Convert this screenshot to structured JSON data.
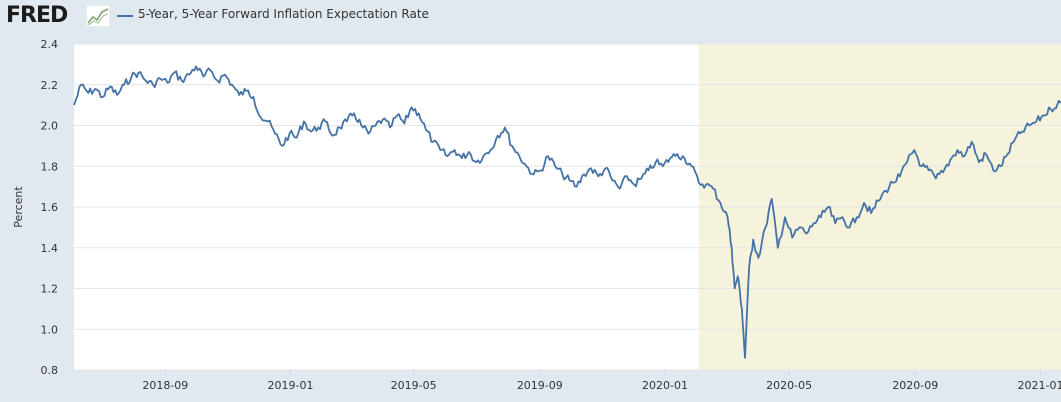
{
  "header": {
    "logo_text": "FRED",
    "logo_graph_icon": "trend-chart-icon"
  },
  "colors": {
    "series": "#4572a7",
    "recession": "#f5f3dc",
    "plot_bg": "#ffffff",
    "page_bg": "#e1e9f0",
    "grid": "#e6e6e6"
  },
  "chart_data": {
    "type": "line",
    "title": "",
    "xlabel": "",
    "ylabel": "Percent",
    "ylim": [
      0.8,
      2.4
    ],
    "xlim": [
      "2018-06-04",
      "2021-01-21"
    ],
    "yticks": [
      "0.8",
      "1.0",
      "1.2",
      "1.4",
      "1.6",
      "1.8",
      "2.0",
      "2.2",
      "2.4"
    ],
    "xticks": [
      "2018-09",
      "2019-01",
      "2019-05",
      "2019-09",
      "2020-01",
      "2020-05",
      "2020-09",
      "2021-01"
    ],
    "grid": true,
    "legend": "top-left",
    "series": [
      {
        "name": "5-Year, 5-Year Forward Inflation Expectation Rate",
        "points": [
          [
            "2018-06-04",
            2.1
          ],
          [
            "2018-06-11",
            2.2
          ],
          [
            "2018-06-18",
            2.16
          ],
          [
            "2018-06-25",
            2.18
          ],
          [
            "2018-07-02",
            2.14
          ],
          [
            "2018-07-09",
            2.19
          ],
          [
            "2018-07-16",
            2.15
          ],
          [
            "2018-07-23",
            2.2
          ],
          [
            "2018-07-30",
            2.24
          ],
          [
            "2018-08-06",
            2.26
          ],
          [
            "2018-08-13",
            2.22
          ],
          [
            "2018-08-20",
            2.2
          ],
          [
            "2018-08-27",
            2.23
          ],
          [
            "2018-09-03",
            2.21
          ],
          [
            "2018-09-10",
            2.26
          ],
          [
            "2018-09-17",
            2.22
          ],
          [
            "2018-09-24",
            2.25
          ],
          [
            "2018-10-01",
            2.29
          ],
          [
            "2018-10-08",
            2.24
          ],
          [
            "2018-10-15",
            2.27
          ],
          [
            "2018-10-22",
            2.22
          ],
          [
            "2018-10-29",
            2.25
          ],
          [
            "2018-11-05",
            2.2
          ],
          [
            "2018-11-12",
            2.15
          ],
          [
            "2018-11-19",
            2.17
          ],
          [
            "2018-11-26",
            2.14
          ],
          [
            "2018-12-03",
            2.04
          ],
          [
            "2018-12-10",
            2.02
          ],
          [
            "2018-12-17",
            1.96
          ],
          [
            "2018-12-24",
            1.9
          ],
          [
            "2018-12-31",
            1.96
          ],
          [
            "2019-01-07",
            1.94
          ],
          [
            "2019-01-14",
            2.02
          ],
          [
            "2019-01-21",
            1.97
          ],
          [
            "2019-01-28",
            1.99
          ],
          [
            "2019-02-04",
            2.02
          ],
          [
            "2019-02-11",
            1.95
          ],
          [
            "2019-02-18",
            1.99
          ],
          [
            "2019-02-25",
            2.02
          ],
          [
            "2019-03-04",
            2.06
          ],
          [
            "2019-03-11",
            2.0
          ],
          [
            "2019-03-18",
            1.96
          ],
          [
            "2019-03-25",
            2.0
          ],
          [
            "2019-04-01",
            2.03
          ],
          [
            "2019-04-08",
            1.99
          ],
          [
            "2019-04-15",
            2.05
          ],
          [
            "2019-04-22",
            2.01
          ],
          [
            "2019-04-29",
            2.09
          ],
          [
            "2019-05-06",
            2.06
          ],
          [
            "2019-05-13",
            1.98
          ],
          [
            "2019-05-20",
            1.92
          ],
          [
            "2019-05-27",
            1.88
          ],
          [
            "2019-06-03",
            1.85
          ],
          [
            "2019-06-10",
            1.88
          ],
          [
            "2019-06-17",
            1.84
          ],
          [
            "2019-06-24",
            1.87
          ],
          [
            "2019-07-01",
            1.82
          ],
          [
            "2019-07-08",
            1.85
          ],
          [
            "2019-07-15",
            1.88
          ],
          [
            "2019-07-22",
            1.95
          ],
          [
            "2019-07-29",
            1.99
          ],
          [
            "2019-08-05",
            1.9
          ],
          [
            "2019-08-12",
            1.85
          ],
          [
            "2019-08-19",
            1.8
          ],
          [
            "2019-08-26",
            1.76
          ],
          [
            "2019-09-02",
            1.78
          ],
          [
            "2019-09-09",
            1.85
          ],
          [
            "2019-09-16",
            1.8
          ],
          [
            "2019-09-23",
            1.76
          ],
          [
            "2019-09-30",
            1.73
          ],
          [
            "2019-10-07",
            1.7
          ],
          [
            "2019-10-14",
            1.76
          ],
          [
            "2019-10-21",
            1.79
          ],
          [
            "2019-10-28",
            1.75
          ],
          [
            "2019-11-04",
            1.79
          ],
          [
            "2019-11-11",
            1.73
          ],
          [
            "2019-11-18",
            1.69
          ],
          [
            "2019-11-25",
            1.75
          ],
          [
            "2019-12-02",
            1.71
          ],
          [
            "2019-12-09",
            1.74
          ],
          [
            "2019-12-16",
            1.78
          ],
          [
            "2019-12-23",
            1.82
          ],
          [
            "2019-12-30",
            1.8
          ],
          [
            "2020-01-06",
            1.84
          ],
          [
            "2020-01-13",
            1.86
          ],
          [
            "2020-01-20",
            1.84
          ],
          [
            "2020-01-27",
            1.8
          ],
          [
            "2020-02-03",
            1.72
          ],
          [
            "2020-02-10",
            1.71
          ],
          [
            "2020-02-17",
            1.69
          ],
          [
            "2020-02-24",
            1.62
          ],
          [
            "2020-03-02",
            1.55
          ],
          [
            "2020-03-06",
            1.4
          ],
          [
            "2020-03-09",
            1.2
          ],
          [
            "2020-03-12",
            1.26
          ],
          [
            "2020-03-16",
            1.1
          ],
          [
            "2020-03-19",
            0.86
          ],
          [
            "2020-03-23",
            1.3
          ],
          [
            "2020-03-27",
            1.44
          ],
          [
            "2020-04-01",
            1.35
          ],
          [
            "2020-04-08",
            1.5
          ],
          [
            "2020-04-14",
            1.64
          ],
          [
            "2020-04-20",
            1.4
          ],
          [
            "2020-04-27",
            1.55
          ],
          [
            "2020-05-04",
            1.45
          ],
          [
            "2020-05-11",
            1.5
          ],
          [
            "2020-05-18",
            1.47
          ],
          [
            "2020-05-25",
            1.52
          ],
          [
            "2020-06-01",
            1.55
          ],
          [
            "2020-06-08",
            1.6
          ],
          [
            "2020-06-15",
            1.52
          ],
          [
            "2020-06-22",
            1.55
          ],
          [
            "2020-06-29",
            1.5
          ],
          [
            "2020-07-06",
            1.55
          ],
          [
            "2020-07-13",
            1.62
          ],
          [
            "2020-07-20",
            1.57
          ],
          [
            "2020-07-27",
            1.63
          ],
          [
            "2020-08-03",
            1.68
          ],
          [
            "2020-08-10",
            1.72
          ],
          [
            "2020-08-17",
            1.75
          ],
          [
            "2020-08-24",
            1.82
          ],
          [
            "2020-08-31",
            1.88
          ],
          [
            "2020-09-07",
            1.8
          ],
          [
            "2020-09-14",
            1.78
          ],
          [
            "2020-09-21",
            1.74
          ],
          [
            "2020-09-28",
            1.77
          ],
          [
            "2020-10-05",
            1.83
          ],
          [
            "2020-10-12",
            1.88
          ],
          [
            "2020-10-19",
            1.85
          ],
          [
            "2020-10-26",
            1.92
          ],
          [
            "2020-11-02",
            1.82
          ],
          [
            "2020-11-09",
            1.86
          ],
          [
            "2020-11-16",
            1.78
          ],
          [
            "2020-11-23",
            1.8
          ],
          [
            "2020-11-30",
            1.86
          ],
          [
            "2020-12-07",
            1.93
          ],
          [
            "2020-12-14",
            1.97
          ],
          [
            "2020-12-21",
            2.0
          ],
          [
            "2020-12-28",
            2.02
          ],
          [
            "2021-01-04",
            2.05
          ],
          [
            "2021-01-11",
            2.08
          ],
          [
            "2021-01-18",
            2.11
          ],
          [
            "2021-01-21",
            2.11
          ]
        ]
      }
    ],
    "shaded_regions": [
      {
        "label": "",
        "start": "2020-02-03",
        "end": "2021-01-21"
      }
    ]
  }
}
